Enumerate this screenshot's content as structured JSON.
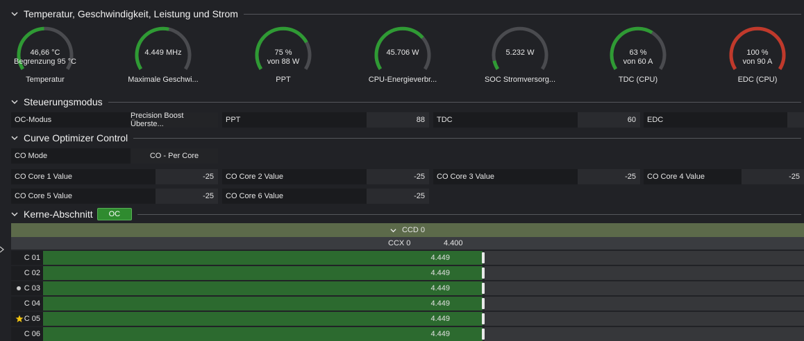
{
  "sections": {
    "temp": "Temperatur, Geschwindigkeit, Leistung und Strom",
    "control": "Steuerungsmodus",
    "curve": "Curve Optimizer Control",
    "cores": "Kerne-Abschnitt",
    "cores_badge": "OC"
  },
  "gauges": [
    {
      "line1": "46,66 °C",
      "line2": "Begrenzung 95 °C",
      "label": "Temperatur",
      "fraction": 0.49,
      "color": "#2f9a34"
    },
    {
      "line1": "4.449  MHz",
      "line2": "",
      "label": "Maximale Geschwi...",
      "fraction": 0.55,
      "color": "#2f9a34"
    },
    {
      "line1": "75 %",
      "line2": "von 88 W",
      "label": "PPT",
      "fraction": 0.75,
      "color": "#2f9a34"
    },
    {
      "line1": "45.706 W",
      "line2": "",
      "label": "CPU-Energieverbr...",
      "fraction": 0.7,
      "color": "#2f9a34"
    },
    {
      "line1": "5.232 W",
      "line2": "",
      "label": "SOC Stromversorg...",
      "fraction": 0.08,
      "color": "#2f9a34"
    },
    {
      "line1": "63 %",
      "line2": "von 60 A",
      "label": "TDC (CPU)",
      "fraction": 0.63,
      "color": "#2f9a34"
    },
    {
      "line1": "100 %",
      "line2": "von 90 A",
      "label": "EDC (CPU)",
      "fraction": 1.0,
      "color": "#c0392b"
    }
  ],
  "control": {
    "oc_mode_label": "OC-Modus",
    "oc_mode_value": "Precision Boost Überste...",
    "ppt_label": "PPT",
    "ppt_value": "88",
    "tdc_label": "TDC",
    "tdc_value": "60",
    "edc_label": "EDC",
    "edc_value": ""
  },
  "curve": {
    "co_mode_label": "CO Mode",
    "co_mode_value": "CO - Per Core",
    "cores": [
      {
        "label": "CO Core 1 Value",
        "value": "-25"
      },
      {
        "label": "CO Core 2 Value",
        "value": "-25"
      },
      {
        "label": "CO Core 3 Value",
        "value": "-25"
      },
      {
        "label": "CO Core 4 Value",
        "value": "-25"
      },
      {
        "label": "CO Core 5 Value",
        "value": "-25"
      },
      {
        "label": "CO Core 6 Value",
        "value": "-25"
      }
    ]
  },
  "ccd": {
    "title": "CCD 0",
    "ccx": "CCX 0",
    "ccx_value": "4.400"
  },
  "core_rows": [
    {
      "name": "C 01",
      "value": "4.449",
      "marker": ""
    },
    {
      "name": "C 02",
      "value": "4.449",
      "marker": ""
    },
    {
      "name": "C 03",
      "value": "4.449",
      "marker": "dot"
    },
    {
      "name": "C 04",
      "value": "4.449",
      "marker": ""
    },
    {
      "name": "C 05",
      "value": "4.449",
      "marker": "star"
    },
    {
      "name": "C 06",
      "value": "4.449",
      "marker": ""
    }
  ]
}
